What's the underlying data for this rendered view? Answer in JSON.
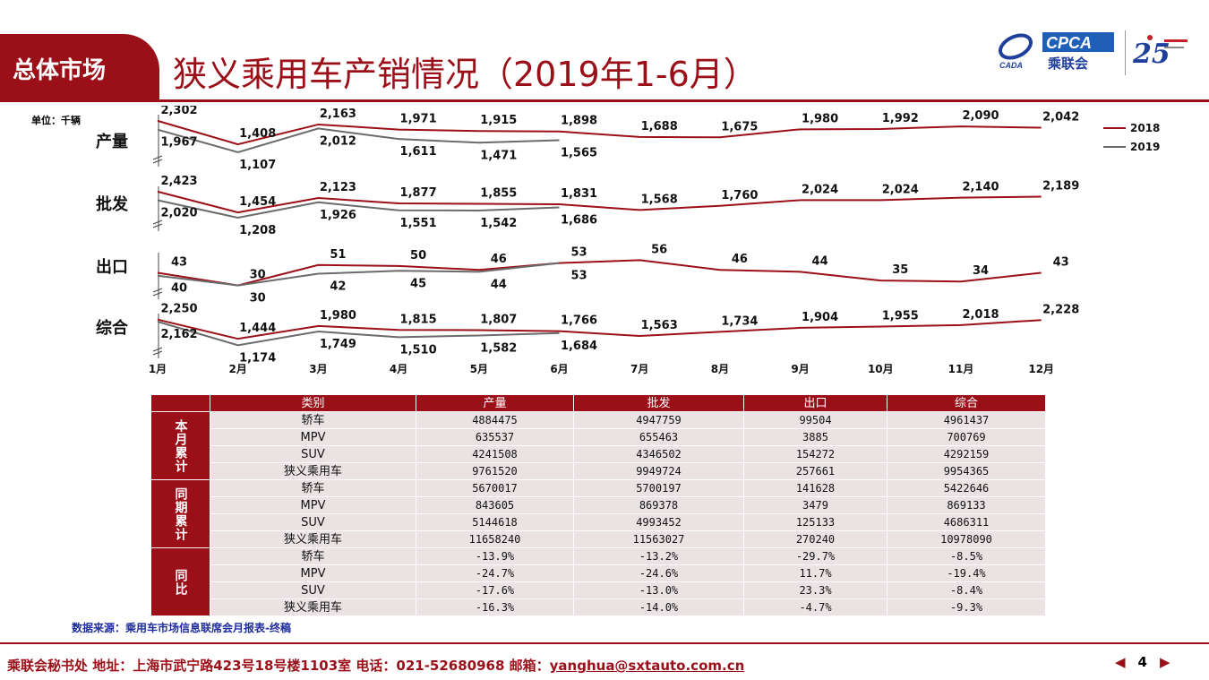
{
  "header": {
    "section": "总体市场",
    "title": "狭义乘用车产销情况（2019年1-6月）",
    "logo_text": "CPCA",
    "logo_sub": "乘联会",
    "logo_left": "CADA",
    "logo_anniv": "25"
  },
  "colors": {
    "brand": "#9b0f18",
    "s2018": "#9b0f18",
    "s2019": "#6b6b6b"
  },
  "chart_data": {
    "type": "line",
    "unit": "单位：千辆",
    "months": [
      "1月",
      "2月",
      "3月",
      "4月",
      "5月",
      "6月",
      "7月",
      "8月",
      "9月",
      "10月",
      "11月",
      "12月"
    ],
    "legend": [
      "2018",
      "2019"
    ],
    "panels": [
      {
        "name": "产量",
        "s2018": [
          2302,
          1408,
          2163,
          1971,
          1915,
          1898,
          1688,
          1675,
          1980,
          1992,
          2090,
          2042
        ],
        "s2019": [
          1967,
          1107,
          2012,
          1611,
          1471,
          1565
        ]
      },
      {
        "name": "批发",
        "s2018": [
          2423,
          1454,
          2123,
          1877,
          1855,
          1831,
          1568,
          1760,
          2024,
          2024,
          2140,
          2189
        ],
        "s2019": [
          2020,
          1208,
          1926,
          1551,
          1542,
          1686
        ]
      },
      {
        "name": "出口",
        "s2018": [
          43,
          30,
          51,
          50,
          46,
          53,
          56,
          46,
          44,
          35,
          34,
          43
        ],
        "s2019": [
          40,
          30,
          42,
          45,
          44,
          53
        ]
      },
      {
        "name": "综合",
        "s2018": [
          2250,
          1444,
          1980,
          1815,
          1807,
          1766,
          1563,
          1734,
          1904,
          1955,
          2018,
          2228
        ],
        "s2019": [
          2162,
          1174,
          1749,
          1510,
          1582,
          1684
        ]
      }
    ]
  },
  "table": {
    "headers": [
      "类别",
      "产量",
      "批发",
      "出口",
      "综合"
    ],
    "groups": [
      {
        "label": "本月累计",
        "rows": [
          [
            "轿车",
            "4884475",
            "4947759",
            "99504",
            "4961437"
          ],
          [
            "MPV",
            "635537",
            "655463",
            "3885",
            "700769"
          ],
          [
            "SUV",
            "4241508",
            "4346502",
            "154272",
            "4292159"
          ],
          [
            "狭义乘用车",
            "9761520",
            "9949724",
            "257661",
            "9954365"
          ]
        ]
      },
      {
        "label": "同期累计",
        "rows": [
          [
            "轿车",
            "5670017",
            "5700197",
            "141628",
            "5422646"
          ],
          [
            "MPV",
            "843605",
            "869378",
            "3479",
            "869133"
          ],
          [
            "SUV",
            "5144618",
            "4993452",
            "125133",
            "4686311"
          ],
          [
            "狭义乘用车",
            "11658240",
            "11563027",
            "270240",
            "10978090"
          ]
        ]
      },
      {
        "label": "同比",
        "rows": [
          [
            "轿车",
            "-13.9%",
            "-13.2%",
            "-29.7%",
            "-8.5%"
          ],
          [
            "MPV",
            "-24.7%",
            "-24.6%",
            "11.7%",
            "-19.4%"
          ],
          [
            "SUV",
            "-17.6%",
            "-13.0%",
            "23.3%",
            "-8.4%"
          ],
          [
            "狭义乘用车",
            "-16.3%",
            "-14.0%",
            "-4.7%",
            "-9.3%"
          ]
        ]
      }
    ]
  },
  "source": "数据来源：乘用车市场信息联席会月报表-终稿",
  "footer": {
    "text": "乘联会秘书处   地址：上海市武宁路423号18号楼1103室  电话：021-52680968   邮箱：",
    "email": "yanghua@sxtauto.com.cn",
    "page": "4"
  }
}
